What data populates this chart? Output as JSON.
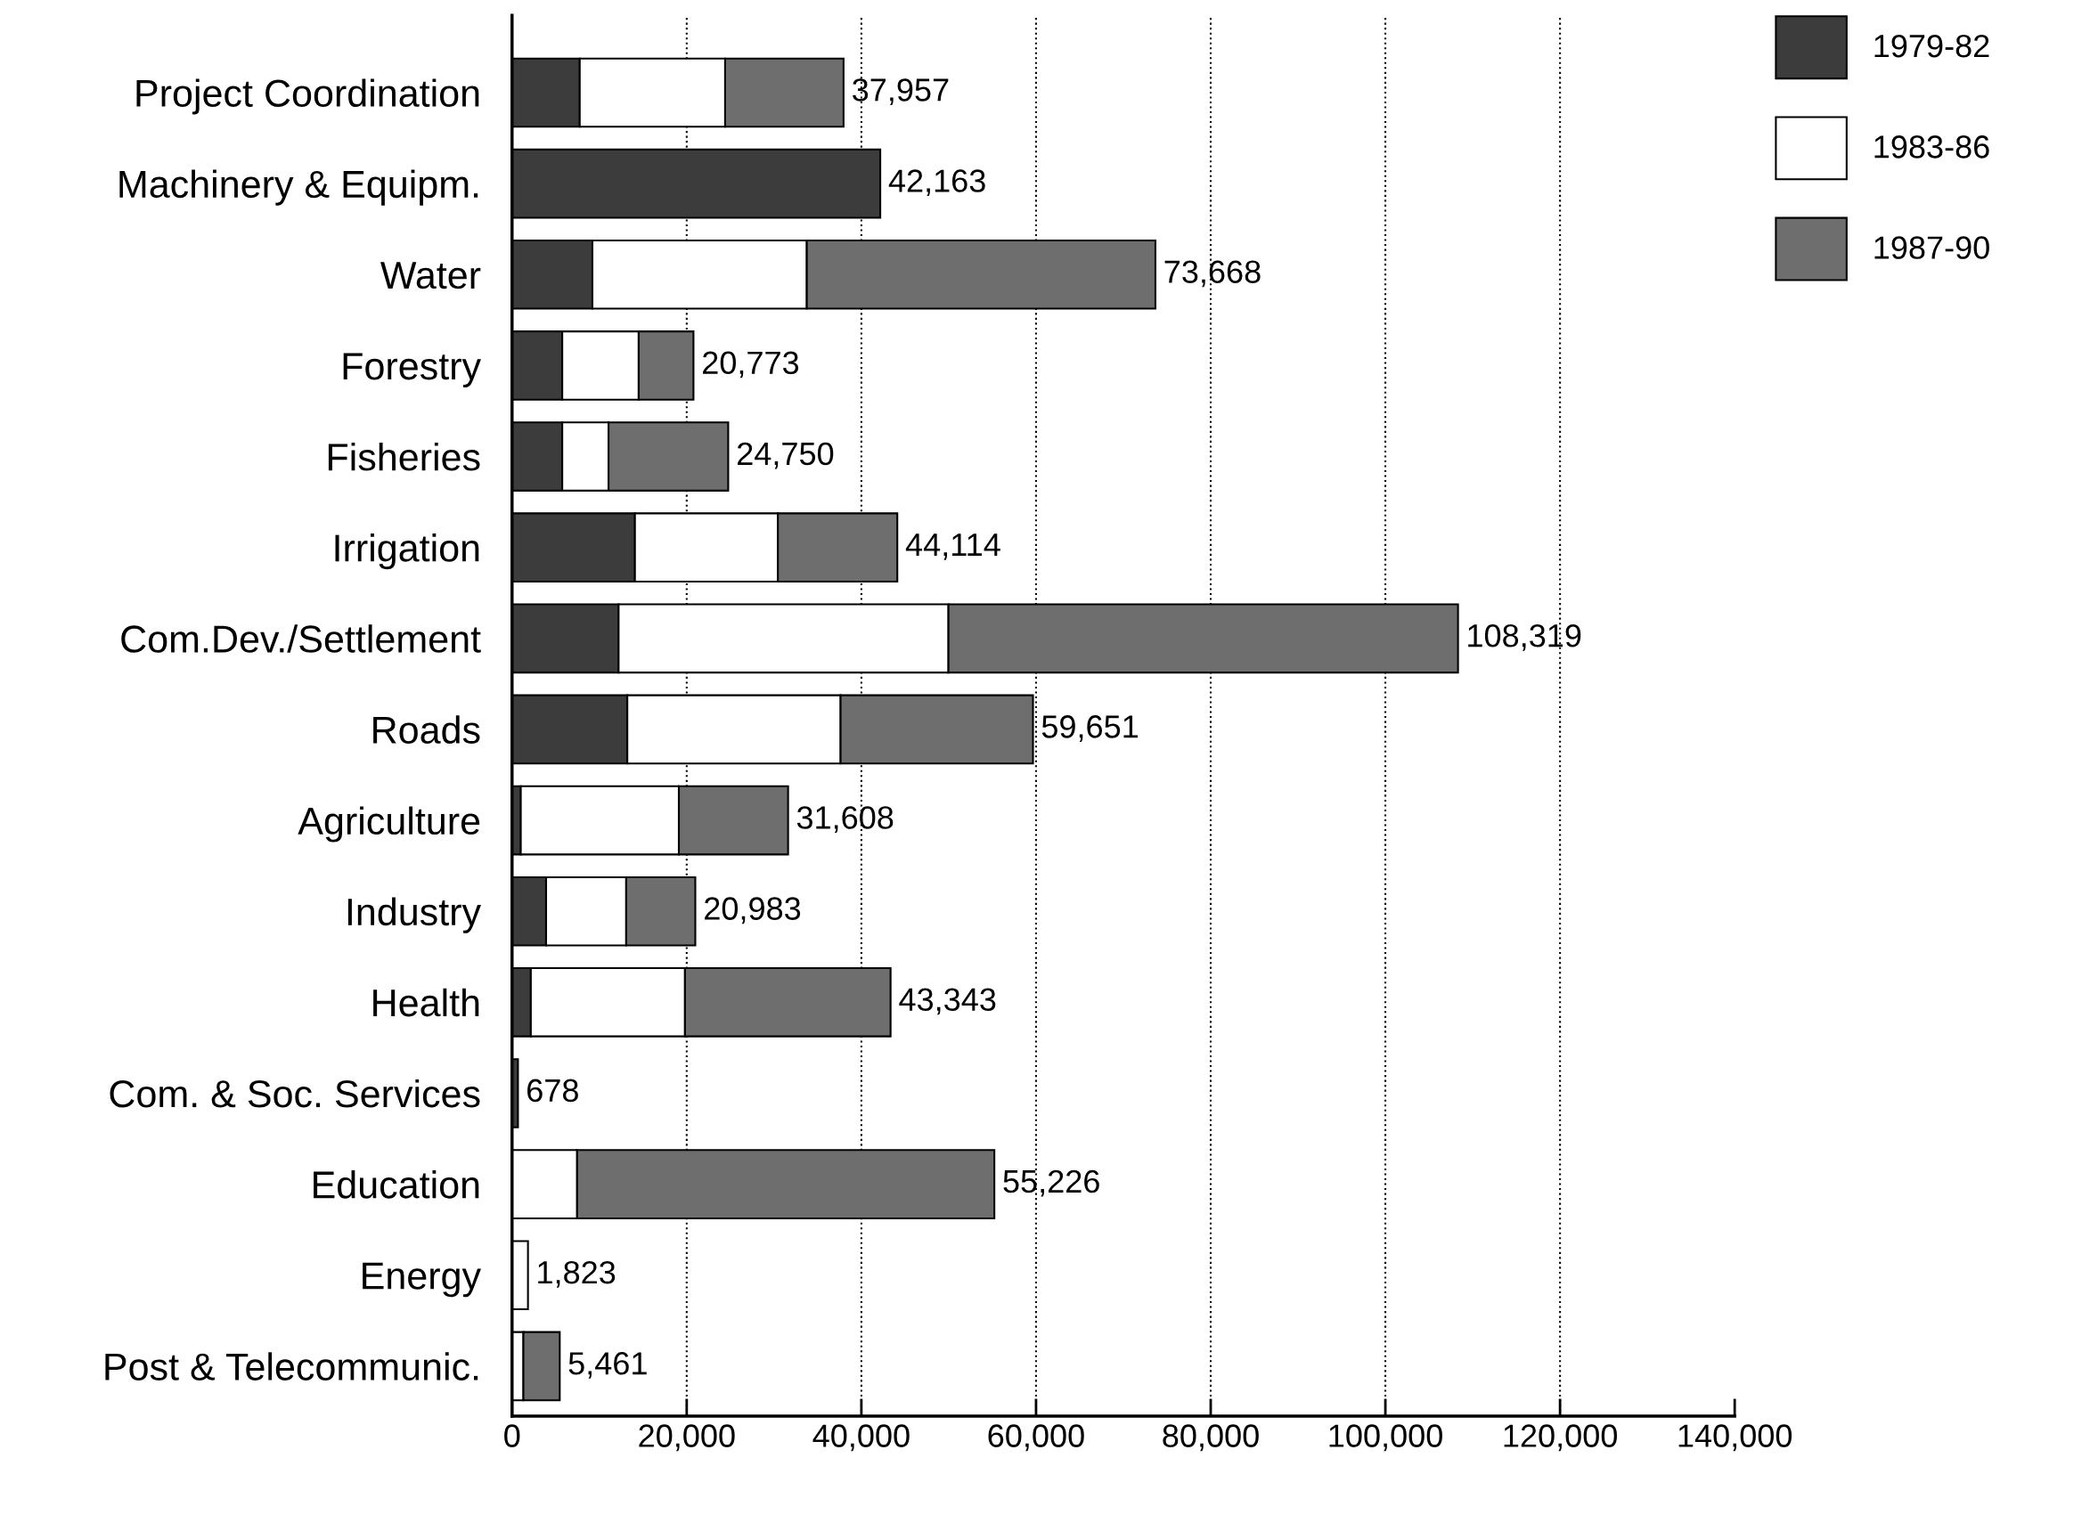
{
  "chart_data": {
    "type": "bar",
    "orientation": "horizontal",
    "stacked": true,
    "categories": [
      "Project Coordination",
      "Machinery & Equipm.",
      "Water",
      "Forestry",
      "Fisheries",
      "Irrigation",
      "Com.Dev./Settlement",
      "Roads",
      "Agriculture",
      "Industry",
      "Health",
      "Com. & Soc. Services",
      "Education",
      "Energy",
      "Post & Telecommunic."
    ],
    "series": [
      {
        "name": "1979-82",
        "color": "#3c3c3c",
        "values": [
          7750,
          42163,
          9200,
          5750,
          5750,
          14070,
          12200,
          13200,
          1000,
          3900,
          2150,
          678,
          null,
          null,
          null
        ]
      },
      {
        "name": "1983-86",
        "color": "#ffffff",
        "values": [
          16650,
          null,
          24550,
          8750,
          5300,
          16370,
          37770,
          24420,
          18100,
          9170,
          17650,
          null,
          7450,
          1823,
          1300
        ]
      },
      {
        "name": "1987-90",
        "color": "#6e6e6e",
        "values": [
          13557,
          null,
          39918,
          6273,
          13700,
          13674,
          58349,
          22031,
          12508,
          7913,
          23543,
          null,
          47776,
          null,
          4161
        ]
      }
    ],
    "totals": [
      "37,957",
      "42,163",
      "73,668",
      "20,773",
      "24,750",
      "44,114",
      "108,319",
      "59,651",
      "31,608",
      "20,983",
      "43,343",
      "678",
      "55,226",
      "1,823",
      "5,461"
    ],
    "xlim": [
      0,
      140000
    ],
    "xticks": [
      {
        "value": 0,
        "label": "0"
      },
      {
        "value": 20000,
        "label": "20,000"
      },
      {
        "value": 40000,
        "label": "40,000"
      },
      {
        "value": 60000,
        "label": "60,000"
      },
      {
        "value": 80000,
        "label": "80,000"
      },
      {
        "value": 100000,
        "label": "100,000"
      },
      {
        "value": 120000,
        "label": "120,000"
      },
      {
        "value": 140000,
        "label": "140,000"
      }
    ],
    "grid": "x",
    "line_style": "dotted",
    "legend": "top right"
  }
}
